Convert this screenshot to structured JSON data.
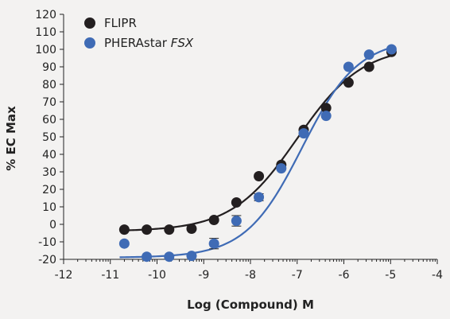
{
  "chart_data": {
    "type": "scatter",
    "title": "",
    "xlabel": "Log (Compound) M",
    "ylabel": "% EC Max",
    "xlim": [
      -12,
      -4
    ],
    "ylim": [
      -20,
      120
    ],
    "x_ticks": [
      -12,
      -11,
      -10,
      -9,
      -8,
      -7,
      -6,
      -5,
      -4
    ],
    "y_ticks": [
      -20,
      -10,
      0,
      10,
      20,
      30,
      40,
      50,
      60,
      70,
      80,
      90,
      100,
      110,
      120
    ],
    "x_tick_labels": [
      "-12",
      "-11",
      "-10",
      "-9",
      "-8",
      "-7",
      "-6",
      "-5",
      "-4"
    ],
    "y_tick_labels": [
      "-20",
      "-10",
      "0",
      "10",
      "20",
      "30",
      "40",
      "50",
      "60",
      "70",
      "80",
      "90",
      "100",
      "110",
      "120"
    ],
    "x_minor_ticks": true,
    "grid": false,
    "legend_position": "top-left",
    "series": [
      {
        "name": "FLIPR",
        "color": "#231f20",
        "x": [
          -10.7,
          -10.22,
          -9.74,
          -9.26,
          -8.78,
          -8.3,
          -7.82,
          -7.34,
          -6.86,
          -6.38,
          -5.9,
          -5.46,
          -4.98
        ],
        "y": [
          -3,
          -3,
          -3,
          -2.5,
          2.5,
          12.5,
          27.5,
          34,
          54,
          66.5,
          81,
          90,
          98.5
        ],
        "error": [
          0,
          0,
          0,
          0,
          0,
          0,
          0,
          0,
          0,
          0,
          0,
          0,
          0
        ],
        "fit": {
          "bottom": -4,
          "top": 102,
          "log_ec50": -7.0,
          "hill": 0.62,
          "x_range": [
            -10.8,
            -4.98
          ]
        }
      },
      {
        "name": "PHERAstar FSX",
        "name_plain": "PHERAstar",
        "name_italic": "FSX",
        "color": "#3f6bb5",
        "x": [
          -10.7,
          -10.22,
          -9.74,
          -9.26,
          -8.78,
          -8.3,
          -7.82,
          -7.34,
          -6.86,
          -6.38,
          -5.9,
          -5.46,
          -4.98
        ],
        "y": [
          -11,
          -18.5,
          -18.5,
          -18,
          -11,
          2,
          15.5,
          32,
          52,
          62,
          90,
          97,
          100
        ],
        "error": [
          0,
          0,
          0,
          0,
          3,
          3,
          2,
          0,
          0,
          0,
          0,
          0,
          0
        ],
        "fit": {
          "bottom": -19,
          "top": 106,
          "log_ec50": -6.9,
          "hill": 0.72,
          "x_range": [
            -10.8,
            -4.98
          ]
        }
      }
    ]
  }
}
